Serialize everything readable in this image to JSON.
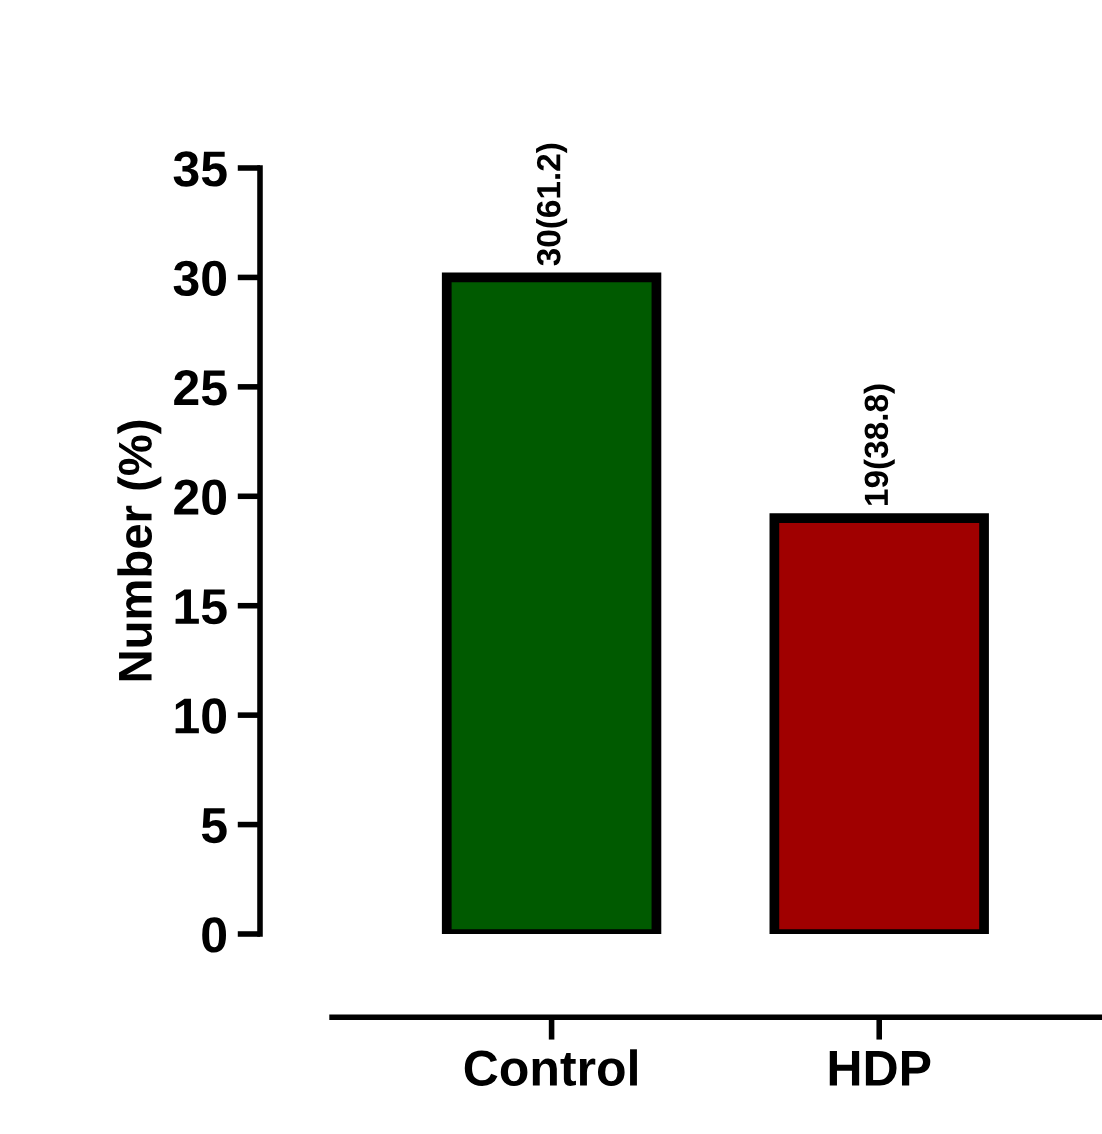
{
  "chart_data": {
    "type": "bar",
    "ylabel": "Number (%)",
    "categories": [
      "Control",
      "HDP"
    ],
    "values": [
      30,
      19
    ],
    "colors": [
      "#005a00",
      "#a00000"
    ],
    "value_labels": [
      "30(61.2)",
      "19(38.8)"
    ],
    "ylim": [
      0,
      35
    ],
    "yticks": [
      0,
      5,
      10,
      15,
      20,
      25,
      30,
      35
    ],
    "grid": false,
    "legend": false
  }
}
